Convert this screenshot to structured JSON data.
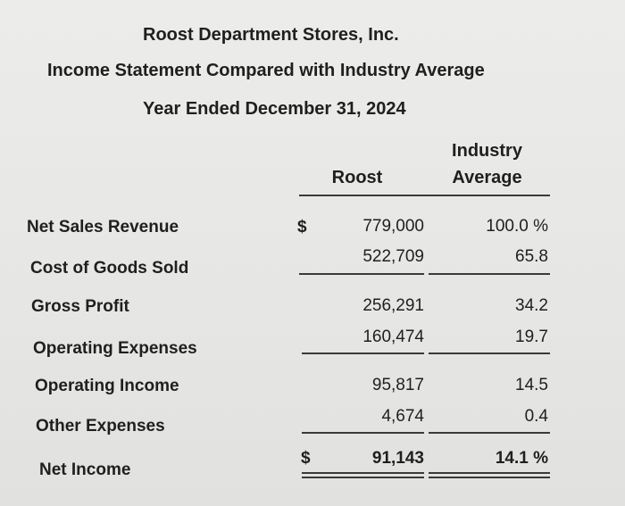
{
  "header": {
    "company": "Roost Department Stores, Inc.",
    "statement": "Income Statement Compared with Industry Average",
    "period": "Year Ended December 31, 2024"
  },
  "columns": {
    "roost": "Roost",
    "industry_line1": "Industry",
    "industry_line2": "Average"
  },
  "rows": [
    {
      "label": "Net Sales Revenue",
      "currency": "$",
      "roost": "779,000",
      "industry": "100.0 %"
    },
    {
      "label": "Cost of Goods Sold",
      "roost": "522,709",
      "industry": "65.8"
    },
    {
      "label": "Gross Profit",
      "roost": "256,291",
      "industry": "34.2"
    },
    {
      "label": "Operating Expenses",
      "roost": "160,474",
      "industry": "19.7"
    },
    {
      "label": "Operating Income",
      "roost": "95,817",
      "industry": "14.5"
    },
    {
      "label": "Other Expenses",
      "roost": "4,674",
      "industry": "0.4"
    },
    {
      "label": "Net Income",
      "currency": "$",
      "roost": "91,143",
      "industry": "14.1 %"
    }
  ]
}
